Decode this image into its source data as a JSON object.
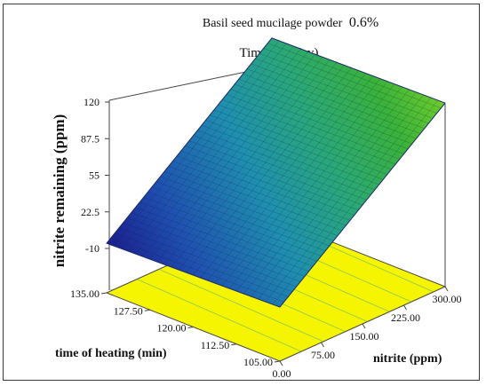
{
  "chart_data": {
    "type": "surface3d",
    "title_line1": "Basil seed mucilage powder",
    "title_value1": "0.6%",
    "title_line2": "Time 9.6 (day)",
    "zlabel": "nitrite remaining (ppm)",
    "xlabel": "nitrite (ppm)",
    "ylabel": "time of heating (min)",
    "z_ticks": [
      "-10",
      "22.5",
      "55",
      "87.5",
      "120"
    ],
    "x_ticks": [
      "0.00",
      "75.00",
      "150.00",
      "225.00",
      "300.00"
    ],
    "y_ticks": [
      "105.00",
      "112.50",
      "120.00",
      "127.50",
      "135.00"
    ],
    "xlim": [
      0,
      300
    ],
    "ylim": [
      105,
      135
    ],
    "zlim": [
      -10,
      120
    ],
    "surface_corners": [
      {
        "nitrite": 0,
        "time_of_heating": 105,
        "remaining": 1
      },
      {
        "nitrite": 0,
        "time_of_heating": 135,
        "remaining": -3
      },
      {
        "nitrite": 300,
        "time_of_heating": 105,
        "remaining": 116
      },
      {
        "nitrite": 300,
        "time_of_heating": 135,
        "remaining": 113
      }
    ],
    "design_point": {
      "nitrite": 150,
      "time_of_heating": 120
    },
    "colormap": [
      "#1a1a8c",
      "#1f4fb0",
      "#1f8fb0",
      "#2aa77a",
      "#3ab23a",
      "#6ccc2a"
    ],
    "floor_color": "#f5f500",
    "grid": true
  }
}
